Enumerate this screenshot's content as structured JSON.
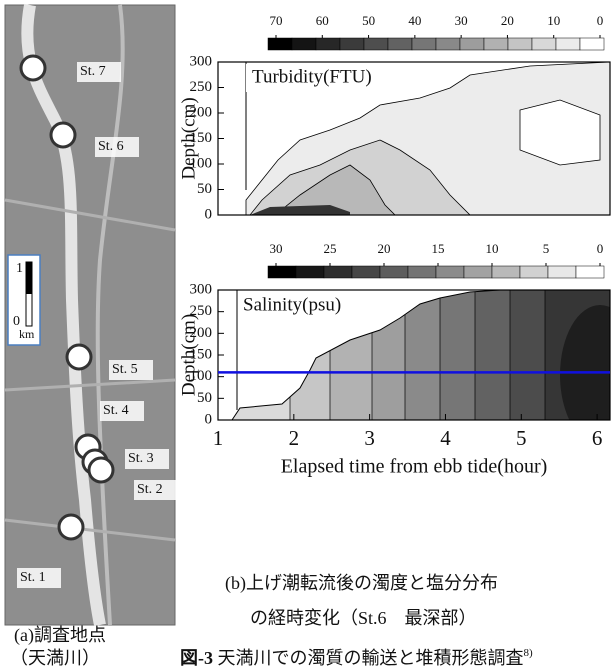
{
  "map": {
    "stations": [
      "St. 7",
      "St. 6",
      "St. 5",
      "St. 4",
      "St. 3",
      "St. 2",
      "St. 1"
    ],
    "scale": {
      "top": "1",
      "bottom": "0",
      "unit": "km"
    },
    "caption": "(a)調査地点",
    "caption_sub": "（天満川）"
  },
  "chart_data": [
    {
      "type": "contour",
      "title": "Turbidity(FTU)",
      "y_label": "Depth(cm)",
      "xlim": [
        1,
        6.17
      ],
      "ylim": [
        0,
        300
      ],
      "yticks": [
        0,
        50,
        100,
        150,
        200,
        250,
        300
      ],
      "colorbar_ticks": [
        70,
        60,
        50,
        40,
        30,
        20,
        10,
        0
      ]
    },
    {
      "type": "contour",
      "title": "Salinity(psu)",
      "y_label": "Depth(cm)",
      "x_label": "Elapsed time from ebb tide(hour)",
      "xlim": [
        1,
        6.17
      ],
      "ylim": [
        0,
        300
      ],
      "xticks": [
        1,
        2,
        3,
        4,
        5,
        6
      ],
      "yticks": [
        0,
        50,
        100,
        150,
        200,
        250,
        300
      ],
      "colorbar_ticks": [
        30,
        25,
        20,
        15,
        10,
        5,
        0
      ],
      "reference_line": {
        "value": 110,
        "color": "#1010e0"
      }
    }
  ],
  "caption_b": {
    "line1": "(b)上げ潮転流後の濁度と塩分分布",
    "line2": "の経時変化（St.6　最深部）"
  },
  "figure_caption": {
    "label": "図-3",
    "text": " 天満川での濁質の輸送と堆積形態調査",
    "ref": "8)"
  }
}
